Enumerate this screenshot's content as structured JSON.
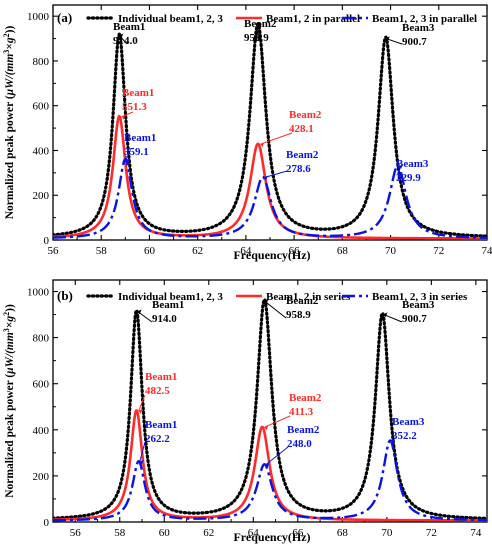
{
  "chart_data": [
    {
      "type": "line",
      "panel_label": "(a)",
      "xlabel": "Frequency(Hz)",
      "ylabel_html_parts": [
        "Normalized peak power (",
        "μW/(mm",
        "3",
        "×g",
        "2",
        "))"
      ],
      "xlim": [
        56,
        74
      ],
      "ylim": [
        0,
        1050
      ],
      "x_ticks": [
        56,
        58,
        60,
        62,
        64,
        66,
        68,
        70,
        72,
        74
      ],
      "y_ticks": [
        0,
        200,
        400,
        600,
        800,
        1000
      ],
      "grid": false,
      "legend_position": "top",
      "series": [
        {
          "name": "Individual beam1, 2, 3",
          "color": "#000000",
          "style": "dotted",
          "peaks": [
            {
              "f": 58.75,
              "p": 914.0,
              "w": 0.32
            },
            {
              "f": 64.5,
              "p": 958.9,
              "w": 0.4
            },
            {
              "f": 69.8,
              "p": 900.7,
              "w": 0.38
            }
          ],
          "base": 8
        },
        {
          "name": "Beam1, 2 in parallel",
          "color": "#ff2a2a",
          "style": "solid",
          "peaks": [
            {
              "f": 58.75,
              "p": 551.3,
              "w": 0.32
            },
            {
              "f": 64.5,
              "p": 428.1,
              "w": 0.4
            }
          ],
          "base": 6
        },
        {
          "name": "Beam1, 2, 3 in parallel",
          "color": "#0a14e0",
          "style": "dashdot",
          "peaks": [
            {
              "f": 59.0,
              "p": 359.1,
              "w": 0.34
            },
            {
              "f": 64.7,
              "p": 278.6,
              "w": 0.42
            },
            {
              "f": 70.3,
              "p": 329.9,
              "w": 0.42
            }
          ],
          "base": 5
        }
      ],
      "annotations": [
        {
          "name": "Beam1",
          "value": "914.0",
          "color": "#000000"
        },
        {
          "name": "Beam2",
          "value": "958.9",
          "color": "#000000"
        },
        {
          "name": "Beam3",
          "value": "900.7",
          "color": "#000000"
        },
        {
          "name": "Beam1",
          "value": "551.3",
          "color": "#ff2a2a"
        },
        {
          "name": "Beam2",
          "value": "428.1",
          "color": "#ff2a2a"
        },
        {
          "name": "Beam1",
          "value": "359.1",
          "color": "#0a14e0"
        },
        {
          "name": "Beam2",
          "value": "278.6",
          "color": "#0a14e0"
        },
        {
          "name": "Beam3",
          "value": "329.9",
          "color": "#0a14e0"
        }
      ]
    },
    {
      "type": "line",
      "panel_label": "(b)",
      "xlabel": "Frequency(Hz)",
      "ylabel_html_parts": [
        "Normalized peak power (",
        "μW/(mm",
        "3",
        "×g",
        "2",
        "))"
      ],
      "xlim": [
        55,
        74.5
      ],
      "ylim": [
        0,
        1050
      ],
      "x_ticks": [
        56,
        58,
        60,
        62,
        64,
        66,
        68,
        70,
        72,
        74
      ],
      "y_ticks": [
        0,
        200,
        400,
        600,
        800,
        1000
      ],
      "grid": false,
      "legend_position": "top",
      "series": [
        {
          "name": "Individual beam1, 2, 3",
          "color": "#000000",
          "style": "dotted",
          "peaks": [
            {
              "f": 58.75,
              "p": 914.0,
              "w": 0.32
            },
            {
              "f": 64.5,
              "p": 958.9,
              "w": 0.4
            },
            {
              "f": 69.8,
              "p": 900.7,
              "w": 0.38
            }
          ],
          "base": 8
        },
        {
          "name": "Beam1, 2 in series",
          "color": "#ff2a2a",
          "style": "solid",
          "peaks": [
            {
              "f": 58.75,
              "p": 482.5,
              "w": 0.32
            },
            {
              "f": 64.4,
              "p": 411.3,
              "w": 0.4
            }
          ],
          "base": 6
        },
        {
          "name": "Beam1, 2, 3 in series",
          "color": "#0a14e0",
          "style": "dashdot",
          "peaks": [
            {
              "f": 58.85,
              "p": 262.2,
              "w": 0.34
            },
            {
              "f": 64.5,
              "p": 248.0,
              "w": 0.42
            },
            {
              "f": 70.15,
              "p": 352.2,
              "w": 0.4
            }
          ],
          "base": 5
        }
      ],
      "annotations": [
        {
          "name": "Beam1",
          "value": "914.0",
          "color": "#000000"
        },
        {
          "name": "Beam2",
          "value": "958.9",
          "color": "#000000"
        },
        {
          "name": "Beam3",
          "value": "900.7",
          "color": "#000000"
        },
        {
          "name": "Beam1",
          "value": "482.5",
          "color": "#ff2a2a"
        },
        {
          "name": "Beam2",
          "value": "411.3",
          "color": "#ff2a2a"
        },
        {
          "name": "Beam1",
          "value": "262.2",
          "color": "#0a14e0"
        },
        {
          "name": "Beam2",
          "value": "248.0",
          "color": "#0a14e0"
        },
        {
          "name": "Beam3",
          "value": "352.2",
          "color": "#0a14e0"
        }
      ]
    }
  ]
}
